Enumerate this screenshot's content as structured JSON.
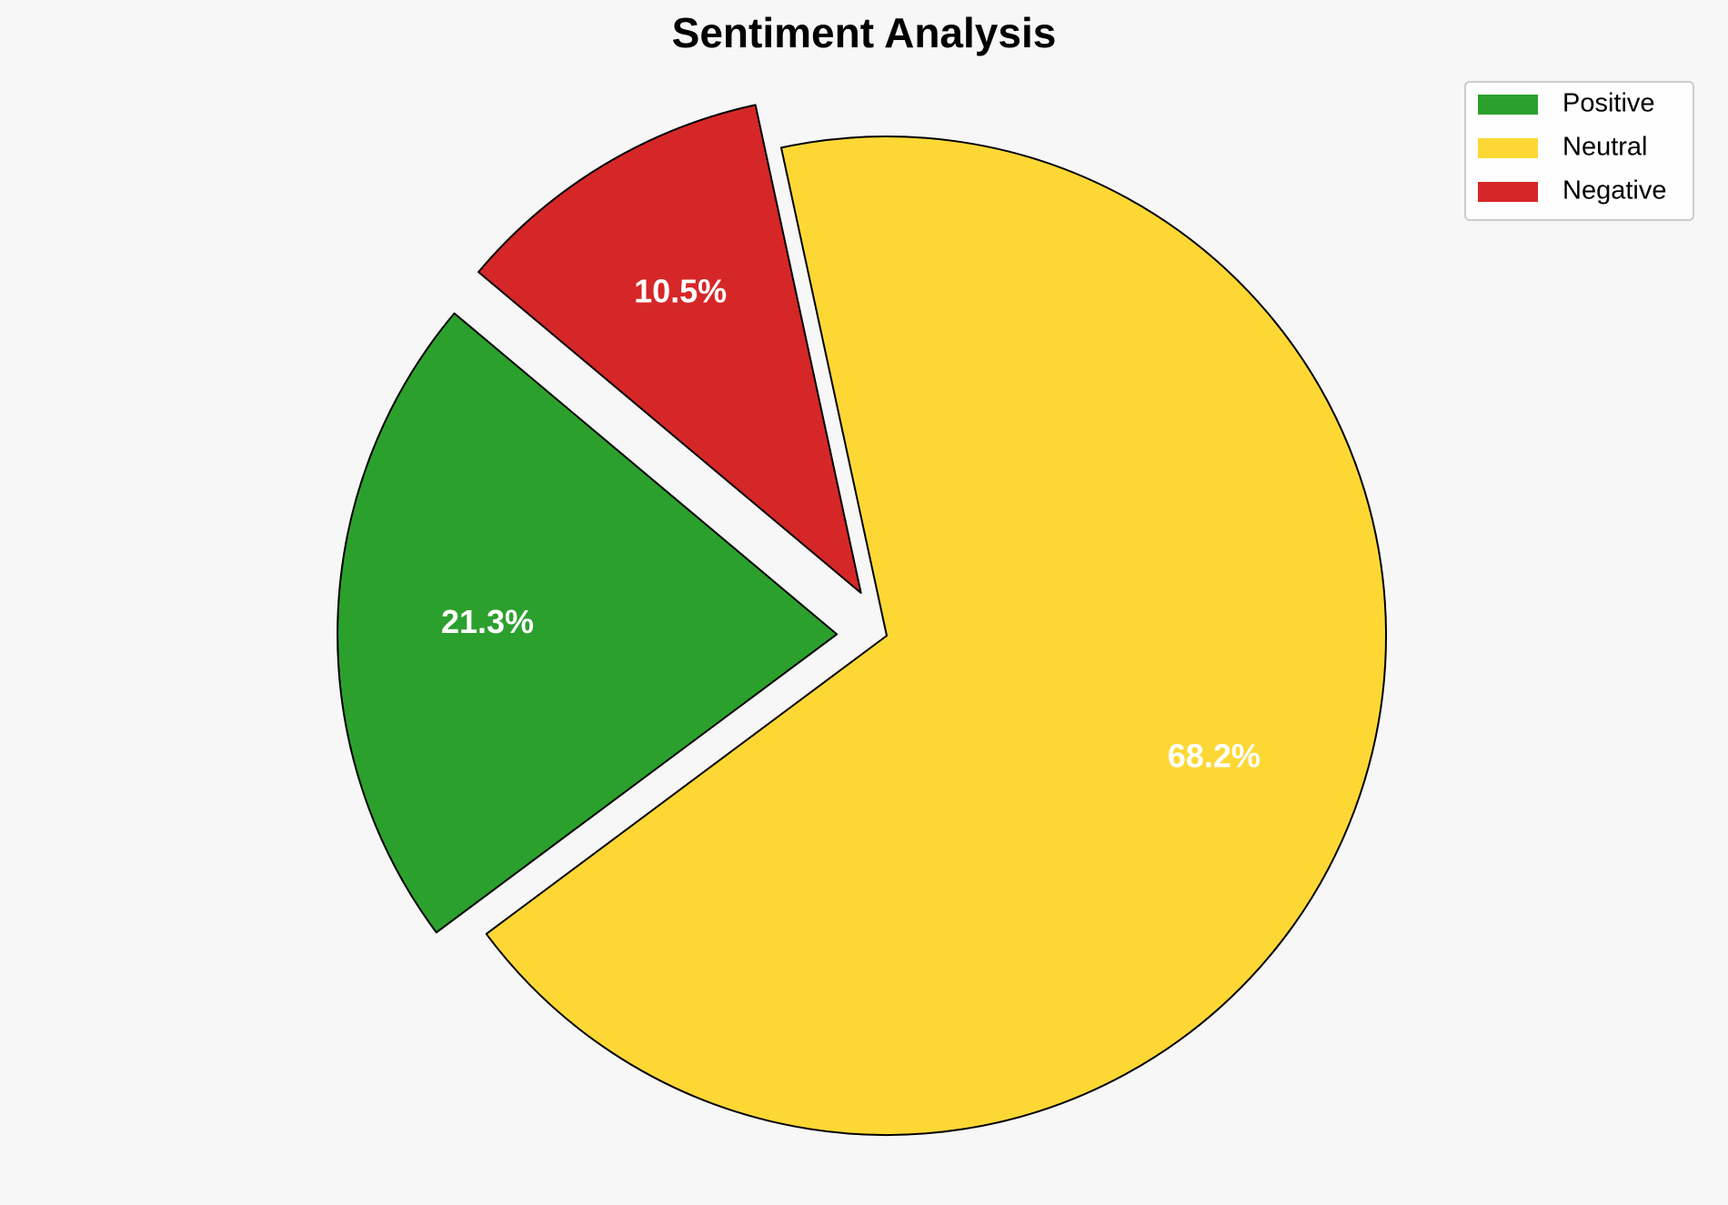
{
  "chart_data": {
    "type": "pie",
    "title": "Sentiment Analysis",
    "categories": [
      "Positive",
      "Neutral",
      "Negative"
    ],
    "values": [
      21.3,
      68.2,
      10.5
    ],
    "value_labels": [
      "21.3%",
      "68.2%",
      "10.5%"
    ],
    "colors": [
      "#2ca02c",
      "#fdd835",
      "#d62728"
    ],
    "legend": "upper right"
  }
}
